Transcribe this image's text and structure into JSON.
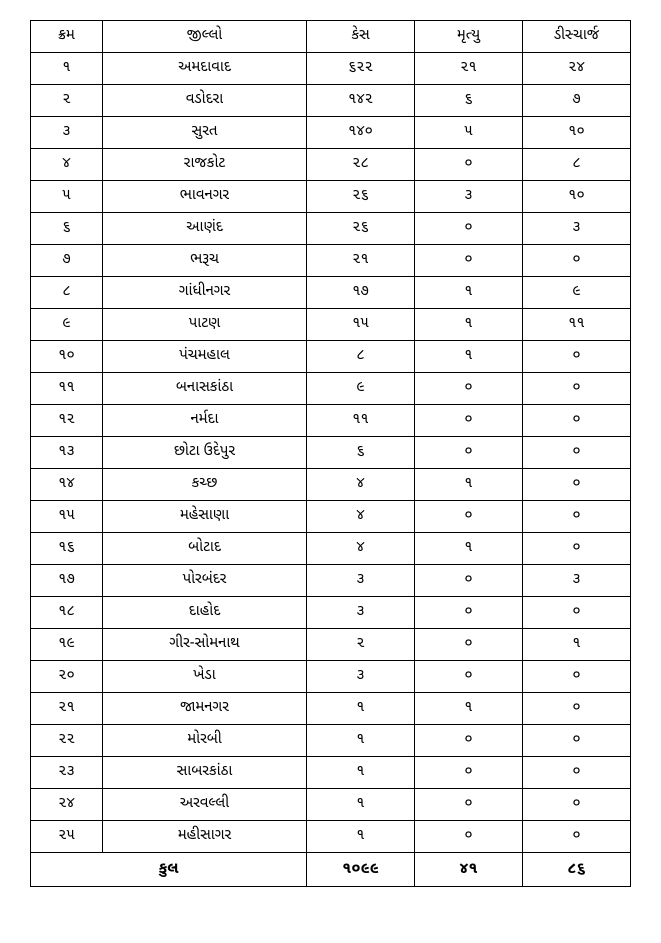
{
  "table": {
    "headers": {
      "sr": "ક્રમ",
      "district": "જીલ્લો",
      "cases": "કેસ",
      "deaths": "મૃત્યુ",
      "discharge": "ડીસ્ચાર્જ"
    },
    "rows": [
      {
        "sr": "૧",
        "district": "અમદાવાદ",
        "cases": "૬૨૨",
        "deaths": "૨૧",
        "discharge": "૨૪"
      },
      {
        "sr": "૨",
        "district": "વડોદરા",
        "cases": "૧૪૨",
        "deaths": "૬",
        "discharge": "૭"
      },
      {
        "sr": "૩",
        "district": "સુરત",
        "cases": "૧૪૦",
        "deaths": "૫",
        "discharge": "૧૦"
      },
      {
        "sr": "૪",
        "district": "રાજકોટ",
        "cases": "૨૮",
        "deaths": "૦",
        "discharge": "૮"
      },
      {
        "sr": "૫",
        "district": "ભાવનગર",
        "cases": "૨૬",
        "deaths": "૩",
        "discharge": "૧૦"
      },
      {
        "sr": "૬",
        "district": "આણંદ",
        "cases": "૨૬",
        "deaths": "૦",
        "discharge": "૩"
      },
      {
        "sr": "૭",
        "district": "ભરૂચ",
        "cases": "૨૧",
        "deaths": "૦",
        "discharge": "૦"
      },
      {
        "sr": "૮",
        "district": "ગાંધીનગર",
        "cases": "૧૭",
        "deaths": "૧",
        "discharge": "૯"
      },
      {
        "sr": "૯",
        "district": "પાટણ",
        "cases": "૧૫",
        "deaths": "૧",
        "discharge": "૧૧"
      },
      {
        "sr": "૧૦",
        "district": "પંચમહાલ",
        "cases": "૮",
        "deaths": "૧",
        "discharge": "૦"
      },
      {
        "sr": "૧૧",
        "district": "બનાસકાંઠા",
        "cases": "૯",
        "deaths": "૦",
        "discharge": "૦"
      },
      {
        "sr": "૧૨",
        "district": "નર્મદા",
        "cases": "૧૧",
        "deaths": "૦",
        "discharge": "૦"
      },
      {
        "sr": "૧૩",
        "district": "છોટા ઉદેપુર",
        "cases": "૬",
        "deaths": "૦",
        "discharge": "૦"
      },
      {
        "sr": "૧૪",
        "district": "કચ્છ",
        "cases": "૪",
        "deaths": "૧",
        "discharge": "૦"
      },
      {
        "sr": "૧૫",
        "district": "મહેસાણા",
        "cases": "૪",
        "deaths": "૦",
        "discharge": "૦"
      },
      {
        "sr": "૧૬",
        "district": "બોટાદ",
        "cases": "૪",
        "deaths": "૧",
        "discharge": "૦"
      },
      {
        "sr": "૧૭",
        "district": "પોરબંદર",
        "cases": "૩",
        "deaths": "૦",
        "discharge": "૩"
      },
      {
        "sr": "૧૮",
        "district": "દાહોદ",
        "cases": "૩",
        "deaths": "૦",
        "discharge": "૦"
      },
      {
        "sr": "૧૯",
        "district": "ગીર-સોમનાથ",
        "cases": "૨",
        "deaths": "૦",
        "discharge": "૧"
      },
      {
        "sr": "૨૦",
        "district": "ખેડા",
        "cases": "૩",
        "deaths": "૦",
        "discharge": "૦"
      },
      {
        "sr": "૨૧",
        "district": "જામનગર",
        "cases": "૧",
        "deaths": "૧",
        "discharge": "૦"
      },
      {
        "sr": "૨૨",
        "district": "મોરબી",
        "cases": "૧",
        "deaths": "૦",
        "discharge": "૦"
      },
      {
        "sr": "૨૩",
        "district": "સાબરકાંઠા",
        "cases": "૧",
        "deaths": "૦",
        "discharge": "૦"
      },
      {
        "sr": "૨૪",
        "district": "અરવલ્લી",
        "cases": "૧",
        "deaths": "૦",
        "discharge": "૦"
      },
      {
        "sr": "૨૫",
        "district": "મહીસાગર",
        "cases": "૧",
        "deaths": "૦",
        "discharge": "૦"
      }
    ],
    "total": {
      "label": "કુલ",
      "cases": "૧૦૯૯",
      "deaths": "૪૧",
      "discharge": "૮૬"
    },
    "styling": {
      "border_color": "#000000",
      "background_color": "#ffffff",
      "text_color": "#000000",
      "cell_fontsize": 15,
      "total_fontsize": 16,
      "col_widths_pct": [
        12,
        34,
        18,
        18,
        18
      ]
    }
  }
}
